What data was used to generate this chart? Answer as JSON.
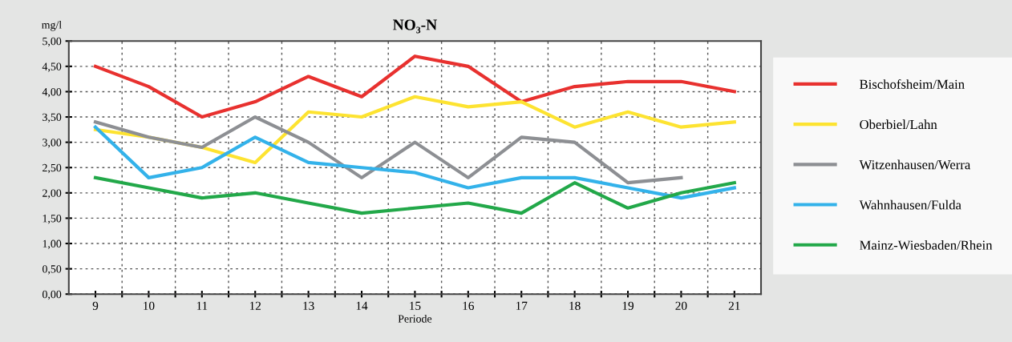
{
  "chart_data": {
    "type": "line",
    "title": "NO₃-N",
    "xlabel": "Periode",
    "ylabel": "mg/l",
    "categories": [
      "9",
      "10",
      "11",
      "12",
      "13",
      "14",
      "15",
      "16",
      "17",
      "18",
      "19",
      "20",
      "21"
    ],
    "series": [
      {
        "name": "Bischofsheim/Main",
        "color": "#e8312f",
        "values": [
          4.5,
          4.1,
          3.5,
          3.8,
          4.3,
          3.9,
          4.7,
          4.5,
          3.8,
          4.1,
          4.2,
          4.2,
          4.0
        ]
      },
      {
        "name": "Oberbiel/Lahn",
        "color": "#fde331",
        "values": [
          3.25,
          3.1,
          2.9,
          2.6,
          3.6,
          3.5,
          3.9,
          3.7,
          3.8,
          3.3,
          3.6,
          3.3,
          3.4
        ]
      },
      {
        "name": "Witzenhausen/Werra",
        "color": "#8d8f93",
        "values": [
          3.4,
          3.1,
          2.9,
          3.5,
          3.0,
          2.3,
          3.0,
          2.3,
          3.1,
          3.0,
          2.2,
          2.3,
          null
        ]
      },
      {
        "name": "Wahnhausen/Fulda",
        "color": "#33b2ea",
        "values": [
          3.3,
          2.3,
          2.5,
          3.1,
          2.6,
          2.5,
          2.4,
          2.1,
          2.3,
          2.3,
          2.1,
          1.9,
          2.1
        ]
      },
      {
        "name": "Mainz-Wiesbaden/Rhein",
        "color": "#22a849",
        "values": [
          2.3,
          2.1,
          1.9,
          2.0,
          1.8,
          1.6,
          1.7,
          1.8,
          1.6,
          2.2,
          1.7,
          2.0,
          2.2
        ]
      }
    ],
    "ylim": [
      0,
      5
    ],
    "yticks": [
      {
        "value": 0,
        "label": "0,00"
      },
      {
        "value": 0.5,
        "label": "0,50"
      },
      {
        "value": 1,
        "label": "1,00"
      },
      {
        "value": 1.5,
        "label": "1,50"
      },
      {
        "value": 2,
        "label": "2,00"
      },
      {
        "value": 2.5,
        "label": "2,50"
      },
      {
        "value": 3,
        "label": "3,00"
      },
      {
        "value": 3.5,
        "label": "3,50"
      },
      {
        "value": 4,
        "label": "4,00"
      },
      {
        "value": 4.5,
        "label": "4,50"
      },
      {
        "value": 5,
        "label": "5,00"
      }
    ],
    "grid": true,
    "legend": "right",
    "marker": "none",
    "line_style": "solid"
  }
}
